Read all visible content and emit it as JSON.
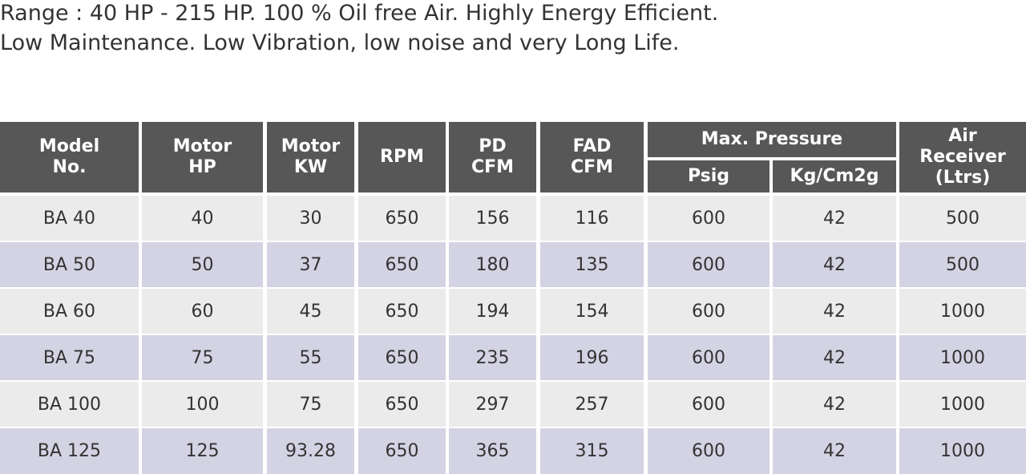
{
  "intro": [
    "Range : 40 HP - 215 HP. 100 % Oil free Air. Highly Energy Efficient.",
    "Low Maintenance. Low Vibration, low noise and very Long Life."
  ],
  "table": {
    "headers": [
      {
        "lines": [
          "Model",
          "No."
        ]
      },
      {
        "lines": [
          "Motor",
          "HP"
        ]
      },
      {
        "lines": [
          "Motor",
          "KW"
        ]
      },
      {
        "lines": [
          "RPM"
        ]
      },
      {
        "lines": [
          "PD",
          "CFM"
        ]
      },
      {
        "lines": [
          "FAD",
          "CFM"
        ]
      },
      {
        "group": "Max. Pressure",
        "sub": [
          "Psig",
          "Kg/Cm2g"
        ]
      },
      {
        "lines": [
          "Air",
          "Receiver",
          "(Ltrs)"
        ]
      }
    ],
    "rows": [
      [
        "BA 40",
        "40",
        "30",
        "650",
        "156",
        "116",
        "600",
        "42",
        "500"
      ],
      [
        "BA 50",
        "50",
        "37",
        "650",
        "180",
        "135",
        "600",
        "42",
        "500"
      ],
      [
        "BA 60",
        "60",
        "45",
        "650",
        "194",
        "154",
        "600",
        "42",
        "1000"
      ],
      [
        "BA 75",
        "75",
        "55",
        "650",
        "235",
        "196",
        "600",
        "42",
        "1000"
      ],
      [
        "BA 100",
        "100",
        "75",
        "650",
        "297",
        "257",
        "600",
        "42",
        "1000"
      ],
      [
        "BA 125",
        "125",
        "93.28",
        "650",
        "365",
        "315",
        "600",
        "42",
        "1000"
      ]
    ]
  }
}
